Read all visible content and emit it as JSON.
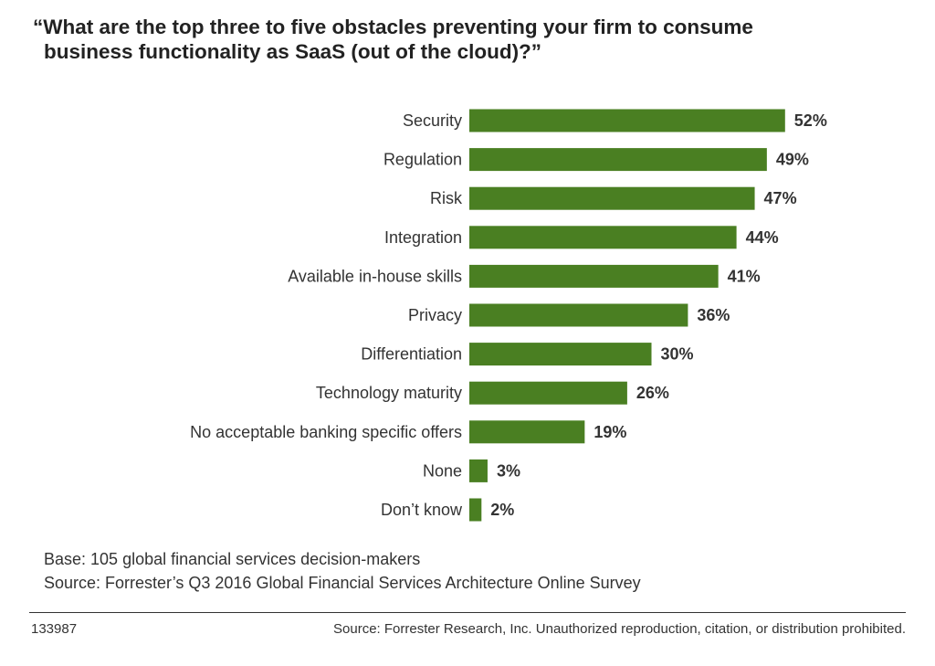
{
  "title": {
    "line1": "“What are the top three to five obstacles preventing your firm to consume",
    "line2": "business functionality as SaaS (out of the cloud)?”"
  },
  "chart_data": {
    "type": "bar",
    "orientation": "horizontal",
    "categories": [
      "Security",
      "Regulation",
      "Risk",
      "Integration",
      "Available in-house skills",
      "Privacy",
      "Differentiation",
      "Technology maturity",
      "No acceptable banking specific offers",
      "None",
      "Don’t know"
    ],
    "values": [
      52,
      49,
      47,
      44,
      41,
      36,
      30,
      26,
      19,
      3,
      2
    ],
    "value_labels": [
      "52%",
      "49%",
      "47%",
      "44%",
      "41%",
      "36%",
      "30%",
      "26%",
      "19%",
      "3%",
      "2%"
    ],
    "unit": "%",
    "bar_color": "#4a7f22",
    "grid": false,
    "legend": "none"
  },
  "notes": {
    "base": "Base: 105 global financial services decision-makers",
    "source": "Source: Forrester’s Q3 2016 Global Financial Services Architecture Online Survey"
  },
  "footer": {
    "id": "133987",
    "source": "Source: Forrester Research, Inc. Unauthorized reproduction, citation, or distribution prohibited."
  }
}
